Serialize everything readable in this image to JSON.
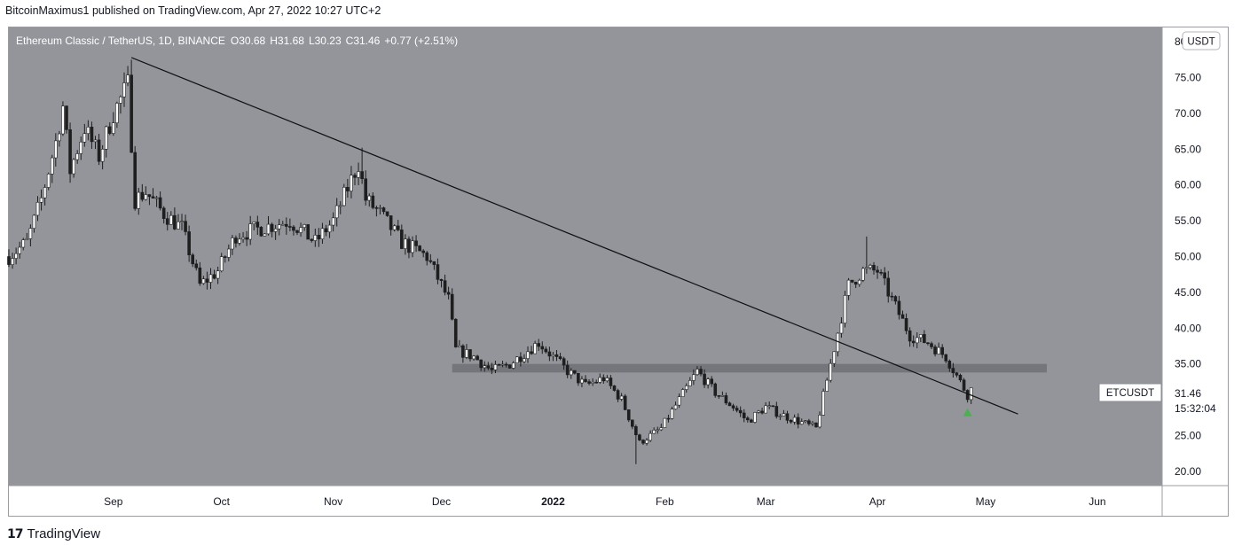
{
  "header": {
    "attribution": "BitcoinMaximus1 published on TradingView.com, Apr 27, 2022 10:27 UTC+2"
  },
  "footer": {
    "brand": "TradingView",
    "logo_glyph": "17"
  },
  "legend": {
    "symbol": "Ethereum Classic / TetherUS, 1D, BINANCE",
    "o_label": "O",
    "o_value": "30.68",
    "h_label": "H",
    "h_value": "31.68",
    "l_label": "L",
    "l_value": "30.23",
    "c_label": "C",
    "c_value": "31.46",
    "change": "+0.77 (+2.51%)"
  },
  "currency_badge": "USDT",
  "price_tag": {
    "ticker": "ETCUSDT",
    "price": "31.46",
    "countdown": "15:32:04"
  },
  "colors": {
    "plot_bg": "#93959b",
    "axis_bg": "#ffffff",
    "candle": "#ffffff",
    "wick": "#1e1e1e",
    "trendline": "#111111",
    "support_band": "#6f7177",
    "marker": "#4caf50"
  },
  "chart_data": {
    "type": "candlestick",
    "ylim": [
      18,
      82
    ],
    "y_ticks": [
      "20.00",
      "25.00",
      "30.00",
      "35.00",
      "40.00",
      "45.00",
      "50.00",
      "55.00",
      "60.00",
      "65.00",
      "70.00",
      "75.00",
      "80.00"
    ],
    "x_ticks": [
      {
        "label": "Sep",
        "date": "2021-09-01"
      },
      {
        "label": "Oct",
        "date": "2021-10-01"
      },
      {
        "label": "Nov",
        "date": "2021-11-01"
      },
      {
        "label": "Dec",
        "date": "2021-12-01"
      },
      {
        "label": "2022",
        "date": "2022-01-01"
      },
      {
        "label": "Feb",
        "date": "2022-02-01"
      },
      {
        "label": "Mar",
        "date": "2022-03-01"
      },
      {
        "label": "Apr",
        "date": "2022-04-01"
      },
      {
        "label": "May",
        "date": "2022-05-01"
      },
      {
        "label": "Jun",
        "date": "2022-06-01"
      }
    ],
    "x_range": [
      "2021-08-03",
      "2022-06-19"
    ],
    "close_path": [
      [
        "2021-08-03",
        50
      ],
      [
        "2021-08-08",
        52
      ],
      [
        "2021-08-12",
        58
      ],
      [
        "2021-08-16",
        66
      ],
      [
        "2021-08-18",
        71
      ],
      [
        "2021-08-20",
        62
      ],
      [
        "2021-08-24",
        68
      ],
      [
        "2021-08-28",
        64
      ],
      [
        "2021-09-01",
        70
      ],
      [
        "2021-09-05",
        74
      ],
      [
        "2021-09-07",
        58
      ],
      [
        "2021-09-10",
        59
      ],
      [
        "2021-09-15",
        56
      ],
      [
        "2021-09-20",
        54
      ],
      [
        "2021-09-25",
        46
      ],
      [
        "2021-09-30",
        48
      ],
      [
        "2021-10-05",
        53
      ],
      [
        "2021-10-12",
        54
      ],
      [
        "2021-10-20",
        55
      ],
      [
        "2021-10-27",
        52
      ],
      [
        "2021-11-01",
        55
      ],
      [
        "2021-11-08",
        63
      ],
      [
        "2021-11-10",
        58
      ],
      [
        "2021-11-14",
        56
      ],
      [
        "2021-11-20",
        52
      ],
      [
        "2021-11-27",
        50
      ],
      [
        "2021-12-03",
        44
      ],
      [
        "2021-12-05",
        37
      ],
      [
        "2021-12-10",
        36
      ],
      [
        "2021-12-15",
        34
      ],
      [
        "2021-12-20",
        35
      ],
      [
        "2021-12-28",
        38
      ],
      [
        "2022-01-01",
        36
      ],
      [
        "2022-01-05",
        34
      ],
      [
        "2022-01-10",
        32
      ],
      [
        "2022-01-15",
        33
      ],
      [
        "2022-01-20",
        30
      ],
      [
        "2022-01-25",
        24
      ],
      [
        "2022-01-31",
        26
      ],
      [
        "2022-02-05",
        30
      ],
      [
        "2022-02-10",
        34
      ],
      [
        "2022-02-15",
        31
      ],
      [
        "2022-02-20",
        29
      ],
      [
        "2022-02-24",
        27
      ],
      [
        "2022-03-01",
        29
      ],
      [
        "2022-03-05",
        28
      ],
      [
        "2022-03-10",
        27
      ],
      [
        "2022-03-15",
        26
      ],
      [
        "2022-03-19",
        35
      ],
      [
        "2022-03-24",
        46
      ],
      [
        "2022-03-28",
        48
      ],
      [
        "2022-04-01",
        48
      ],
      [
        "2022-04-05",
        44
      ],
      [
        "2022-04-10",
        39
      ],
      [
        "2022-04-15",
        38
      ],
      [
        "2022-04-20",
        36
      ],
      [
        "2022-04-26",
        30.7
      ],
      [
        "2022-04-27",
        31.46
      ]
    ],
    "extremes": [
      {
        "date": "2021-09-06",
        "value": 77.5
      },
      {
        "date": "2021-11-09",
        "value": 65.2
      },
      {
        "date": "2022-01-24",
        "value": 21.0
      },
      {
        "date": "2022-03-29",
        "value": 52.8
      }
    ],
    "trendline": {
      "from": {
        "date": "2021-09-06",
        "value": 77.8
      },
      "to": {
        "date": "2022-05-10",
        "value": 28.0
      }
    },
    "support_zone": {
      "from_date": "2021-12-04",
      "to_date": "2022-05-18",
      "low": 33.8,
      "high": 35.0
    },
    "marker": {
      "date": "2022-04-26",
      "value": 28.2,
      "shape": "triangle-up"
    }
  }
}
